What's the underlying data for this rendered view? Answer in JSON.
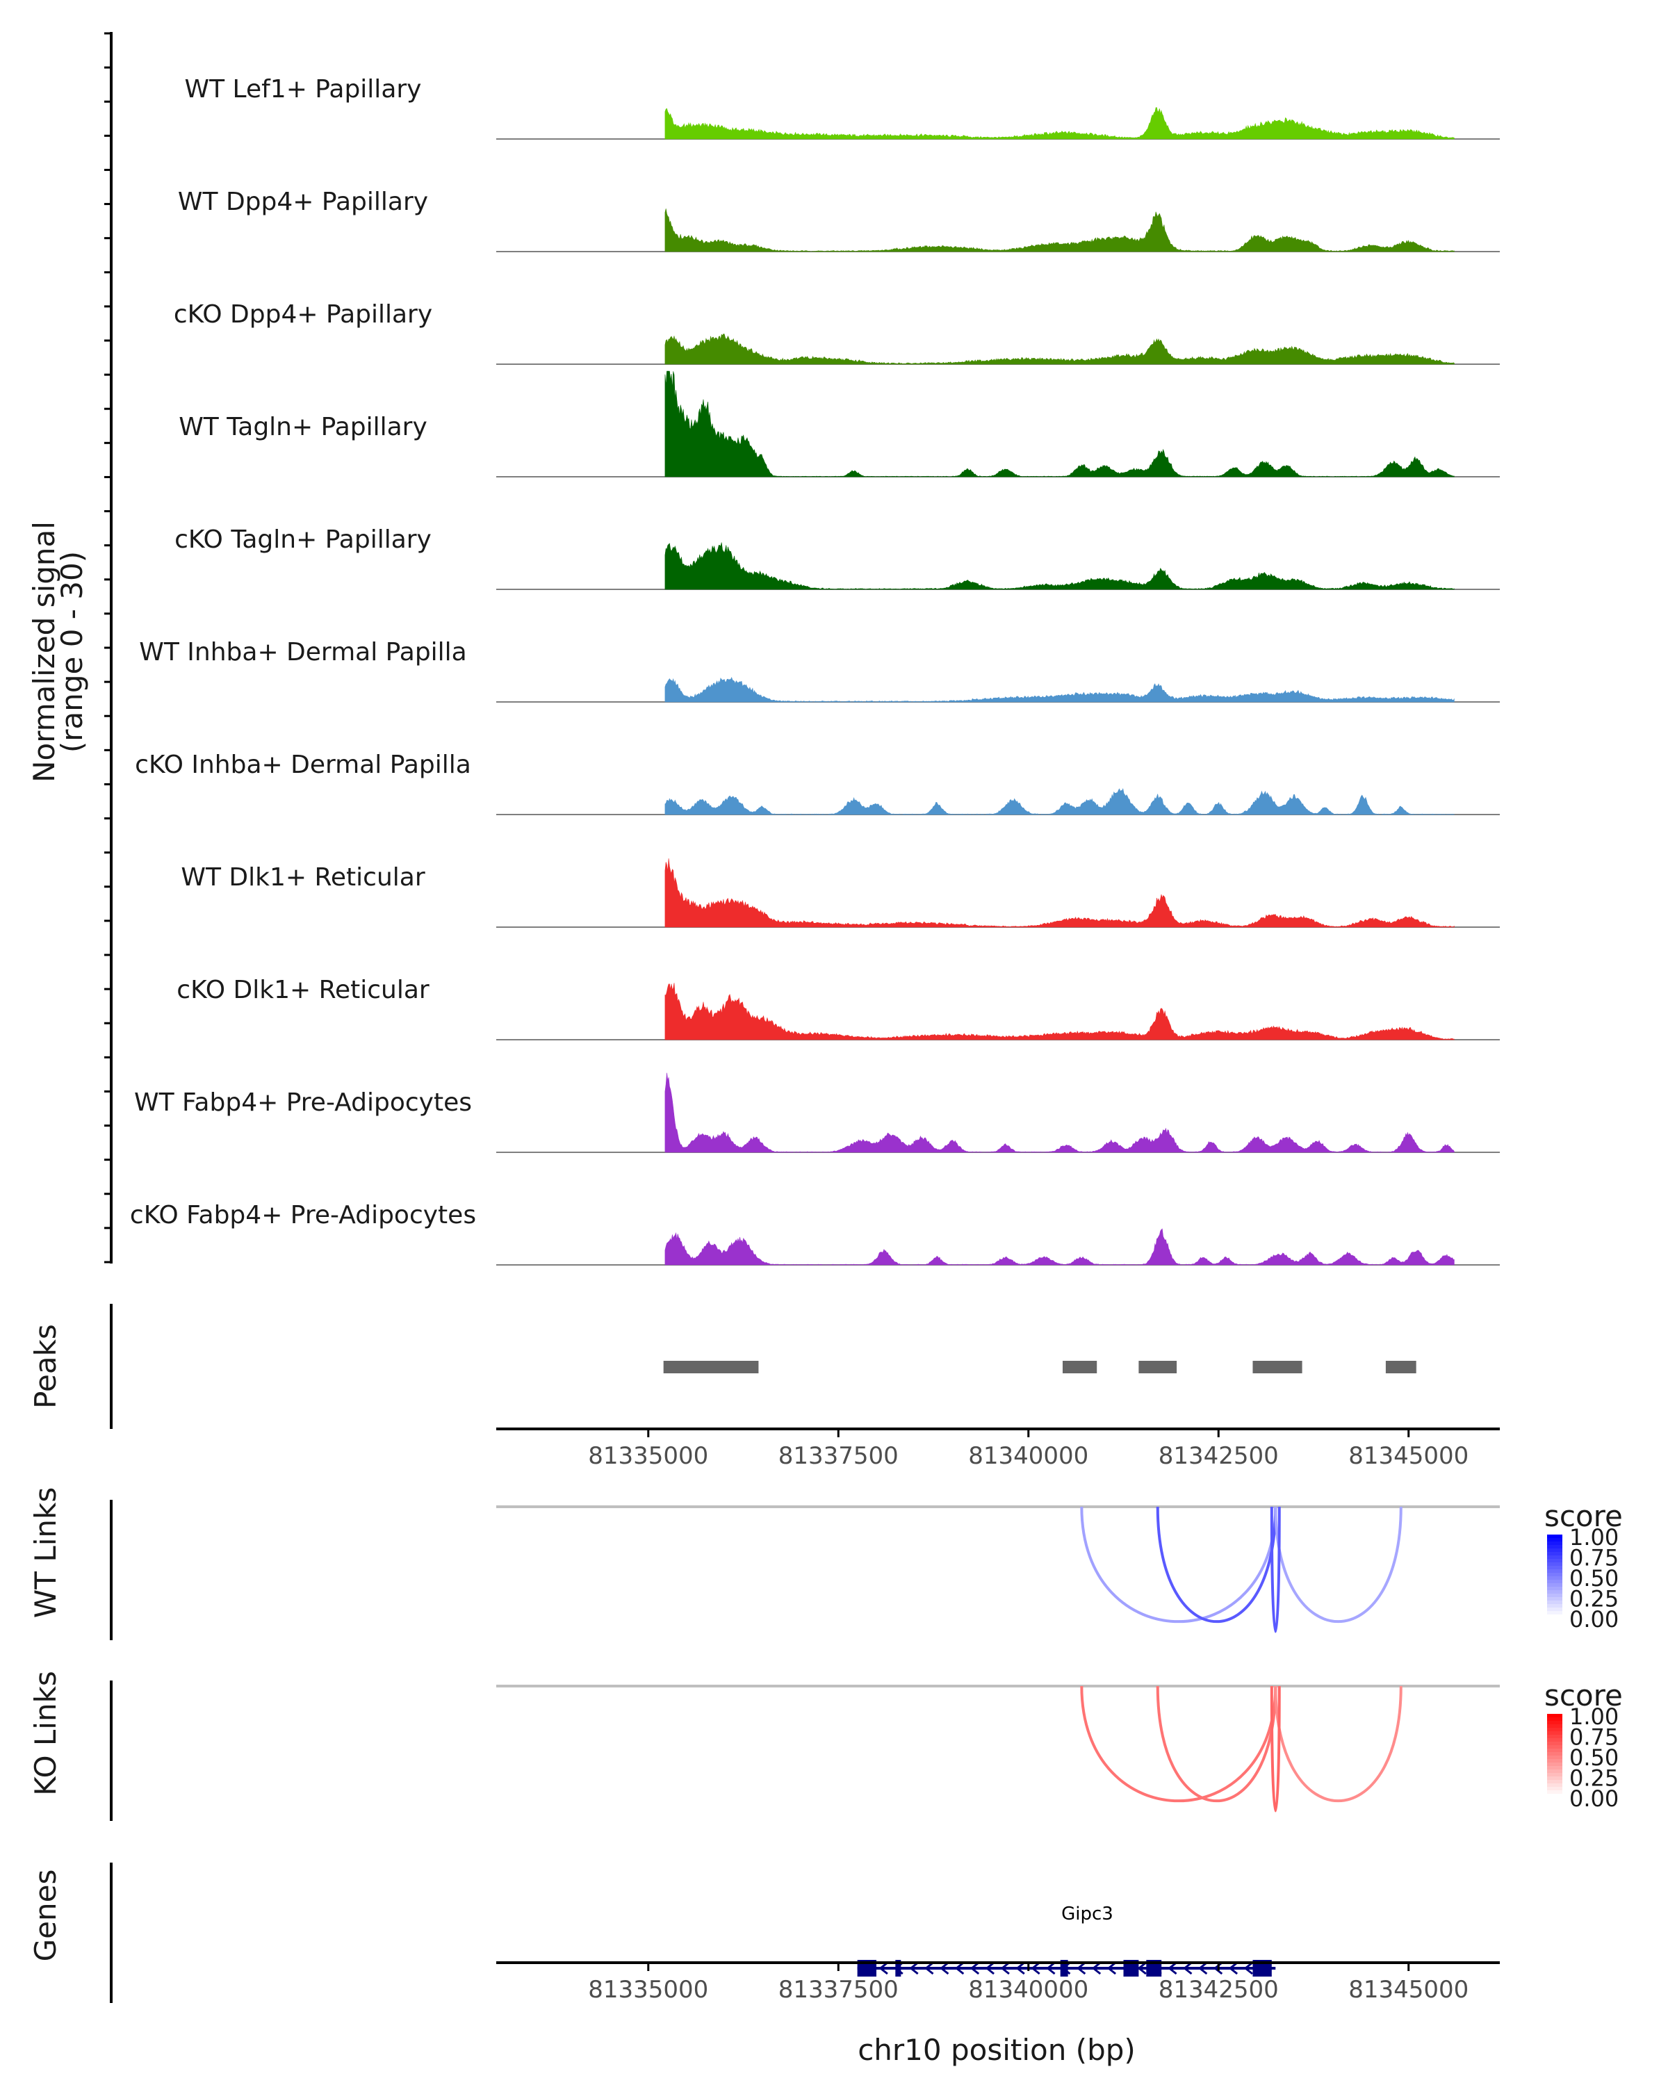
{
  "chart_data": {
    "type": "coverage",
    "x_axis": {
      "label": "chr10 position (bp)",
      "range": [
        81333000,
        81346200
      ],
      "ticks": [
        81335000,
        81337500,
        81340000,
        81342500,
        81345000
      ],
      "tick_labels": [
        "81335000",
        "81337500",
        "81340000",
        "81342500",
        "81345000"
      ]
    },
    "coverage": {
      "ylabel_line1": "Normalized signal",
      "ylabel_line2": "(range 0 - 30)",
      "y_range": [
        0,
        30
      ],
      "tracks": [
        {
          "name": "WT Lef1+ Papillary",
          "color": "#66CD00",
          "peaks": [
            [
              81335200,
              8,
              0.09
            ],
            [
              81335500,
              3,
              0.15
            ],
            [
              81335800,
              2.5,
              0.15
            ],
            [
              81336200,
              2,
              0.3
            ],
            [
              81337000,
              1,
              0.5
            ],
            [
              81338500,
              0.8,
              0.6
            ],
            [
              81340500,
              1.5,
              0.4
            ],
            [
              81341700,
              8,
              0.09
            ],
            [
              81342300,
              1.5,
              0.3
            ],
            [
              81343000,
              3,
              0.2
            ],
            [
              81343400,
              4,
              0.2
            ],
            [
              81343800,
              2,
              0.25
            ],
            [
              81344500,
              1.5,
              0.2
            ],
            [
              81345000,
              2,
              0.25
            ]
          ],
          "noise": 0.6
        },
        {
          "name": "WT Dpp4+ Papillary",
          "color": "#458B00",
          "peaks": [
            [
              81335200,
              11,
              0.09
            ],
            [
              81335500,
              4,
              0.15
            ],
            [
              81335900,
              2.5,
              0.15
            ],
            [
              81336300,
              1.5,
              0.2
            ],
            [
              81338800,
              1.2,
              0.4
            ],
            [
              81340300,
              1.8,
              0.3
            ],
            [
              81341000,
              2.5,
              0.3
            ],
            [
              81341400,
              2,
              0.3
            ],
            [
              81341700,
              9,
              0.09
            ],
            [
              81343000,
              4,
              0.12
            ],
            [
              81343400,
              4,
              0.15
            ],
            [
              81343700,
              2,
              0.1
            ],
            [
              81344500,
              1.5,
              0.15
            ],
            [
              81345000,
              2.5,
              0.15
            ]
          ],
          "noise": 0.5
        },
        {
          "name": "cKO Dpp4+ Papillary",
          "color": "#458B00",
          "peaks": [
            [
              81335300,
              7,
              0.12
            ],
            [
              81335700,
              5,
              0.15
            ],
            [
              81336000,
              6,
              0.15
            ],
            [
              81336300,
              3,
              0.2
            ],
            [
              81337200,
              1.5,
              0.4
            ],
            [
              81340000,
              1.2,
              0.6
            ],
            [
              81341300,
              2,
              0.3
            ],
            [
              81341700,
              5.5,
              0.1
            ],
            [
              81342300,
              1.5,
              0.3
            ],
            [
              81343000,
              3.5,
              0.2
            ],
            [
              81343500,
              4,
              0.2
            ],
            [
              81344400,
              2,
              0.3
            ],
            [
              81345000,
              2,
              0.25
            ]
          ],
          "noise": 0.6
        },
        {
          "name": "WT Tagln+ Papillary",
          "color": "#006400",
          "peaks": [
            [
              81335250,
              26,
              0.1
            ],
            [
              81335500,
              15,
              0.15
            ],
            [
              81335750,
              14,
              0.08
            ],
            [
              81336000,
              11,
              0.15
            ],
            [
              81336300,
              9,
              0.1
            ],
            [
              81336500,
              4,
              0.06
            ],
            [
              81337700,
              1.5,
              0.06
            ],
            [
              81339200,
              2,
              0.06
            ],
            [
              81339700,
              2,
              0.08
            ],
            [
              81340700,
              3,
              0.08
            ],
            [
              81341000,
              3,
              0.1
            ],
            [
              81341400,
              2,
              0.12
            ],
            [
              81341750,
              7,
              0.1
            ],
            [
              81342700,
              2.5,
              0.08
            ],
            [
              81343100,
              4,
              0.1
            ],
            [
              81343400,
              3,
              0.08
            ],
            [
              81344800,
              4,
              0.1
            ],
            [
              81345100,
              5,
              0.08
            ],
            [
              81345400,
              2,
              0.08
            ]
          ],
          "noise": 0.3
        },
        {
          "name": "cKO Tagln+ Papillary",
          "color": "#006400",
          "peaks": [
            [
              81335300,
              12,
              0.12
            ],
            [
              81335700,
              8,
              0.15
            ],
            [
              81336000,
              10,
              0.15
            ],
            [
              81336400,
              4,
              0.2
            ],
            [
              81336800,
              1.5,
              0.2
            ],
            [
              81339200,
              2,
              0.15
            ],
            [
              81340200,
              1,
              0.2
            ],
            [
              81340800,
              2,
              0.2
            ],
            [
              81341200,
              2,
              0.25
            ],
            [
              81341750,
              5,
              0.1
            ],
            [
              81342700,
              2.5,
              0.15
            ],
            [
              81343100,
              4,
              0.15
            ],
            [
              81343500,
              2.5,
              0.15
            ],
            [
              81344400,
              1.5,
              0.15
            ],
            [
              81345000,
              1.5,
              0.2
            ]
          ],
          "noise": 0.5
        },
        {
          "name": "WT Inhba+ Dermal Papilla",
          "color": "#4F94CD",
          "peaks": [
            [
              81335300,
              6,
              0.1
            ],
            [
              81335900,
              4,
              0.2
            ],
            [
              81336200,
              4,
              0.2
            ],
            [
              81339800,
              1,
              0.4
            ],
            [
              81340600,
              1.5,
              0.3
            ],
            [
              81341200,
              1.8,
              0.3
            ],
            [
              81341700,
              4,
              0.08
            ],
            [
              81342300,
              1.5,
              0.3
            ],
            [
              81343000,
              2,
              0.2
            ],
            [
              81343500,
              2.5,
              0.2
            ],
            [
              81344400,
              1,
              0.3
            ],
            [
              81345200,
              1,
              0.3
            ]
          ],
          "noise": 0.5
        },
        {
          "name": "cKO Inhba+ Dermal Papilla",
          "color": "#4F94CD",
          "peaks": [
            [
              81335300,
              4,
              0.1
            ],
            [
              81335700,
              4,
              0.1
            ],
            [
              81336100,
              5,
              0.12
            ],
            [
              81336500,
              2,
              0.06
            ],
            [
              81337700,
              4,
              0.1
            ],
            [
              81338000,
              3,
              0.08
            ],
            [
              81338800,
              3,
              0.06
            ],
            [
              81339800,
              4,
              0.1
            ],
            [
              81340500,
              3,
              0.08
            ],
            [
              81340800,
              4,
              0.1
            ],
            [
              81341200,
              7,
              0.12
            ],
            [
              81341700,
              5,
              0.08
            ],
            [
              81342100,
              3,
              0.06
            ],
            [
              81342500,
              3,
              0.06
            ],
            [
              81343100,
              6,
              0.12
            ],
            [
              81343500,
              5,
              0.1
            ],
            [
              81343900,
              2,
              0.05
            ],
            [
              81344400,
              5,
              0.06
            ],
            [
              81344900,
              2,
              0.05
            ]
          ],
          "noise": 0.3
        },
        {
          "name": "WT Dlk1+ Reticular",
          "color": "#EE2C2C",
          "peaks": [
            [
              81335250,
              17,
              0.1
            ],
            [
              81335500,
              6,
              0.12
            ],
            [
              81335800,
              5,
              0.15
            ],
            [
              81336100,
              6,
              0.15
            ],
            [
              81336400,
              4,
              0.15
            ],
            [
              81337000,
              1.2,
              0.4
            ],
            [
              81338500,
              1,
              0.5
            ],
            [
              81340600,
              2,
              0.25
            ],
            [
              81341200,
              1.5,
              0.3
            ],
            [
              81341750,
              8,
              0.1
            ],
            [
              81342300,
              1.5,
              0.2
            ],
            [
              81343200,
              3,
              0.15
            ],
            [
              81343600,
              2.5,
              0.15
            ],
            [
              81344500,
              2,
              0.15
            ],
            [
              81345000,
              2.5,
              0.15
            ]
          ],
          "noise": 0.5
        },
        {
          "name": "cKO Dlk1+ Reticular",
          "color": "#EE2C2C",
          "peaks": [
            [
              81335300,
              15,
              0.12
            ],
            [
              81335700,
              9,
              0.12
            ],
            [
              81336100,
              11,
              0.15
            ],
            [
              81336500,
              5,
              0.2
            ],
            [
              81337200,
              1.5,
              0.4
            ],
            [
              81339000,
              1.2,
              0.5
            ],
            [
              81340500,
              1.5,
              0.4
            ],
            [
              81341200,
              1.5,
              0.3
            ],
            [
              81341750,
              8,
              0.09
            ],
            [
              81342500,
              2,
              0.3
            ],
            [
              81343200,
              3,
              0.2
            ],
            [
              81343700,
              2,
              0.2
            ],
            [
              81344600,
              2,
              0.2
            ],
            [
              81345000,
              2.5,
              0.2
            ]
          ],
          "noise": 0.5
        },
        {
          "name": "WT Fabp4+ Pre-Adipocytes",
          "color": "#9A32CD",
          "peaks": [
            [
              81335250,
              20,
              0.08
            ],
            [
              81335700,
              5,
              0.12
            ],
            [
              81336000,
              5,
              0.1
            ],
            [
              81336400,
              4,
              0.1
            ],
            [
              81337800,
              3,
              0.15
            ],
            [
              81338200,
              5,
              0.12
            ],
            [
              81338600,
              4,
              0.1
            ],
            [
              81339000,
              3,
              0.08
            ],
            [
              81339700,
              2,
              0.06
            ],
            [
              81340500,
              2,
              0.08
            ],
            [
              81341100,
              3,
              0.1
            ],
            [
              81341500,
              4,
              0.1
            ],
            [
              81341800,
              6,
              0.1
            ],
            [
              81342400,
              3,
              0.06
            ],
            [
              81343000,
              4,
              0.1
            ],
            [
              81343400,
              4,
              0.12
            ],
            [
              81343800,
              3,
              0.08
            ],
            [
              81344300,
              2,
              0.08
            ],
            [
              81345000,
              5,
              0.08
            ],
            [
              81345500,
              2,
              0.05
            ]
          ],
          "noise": 0.3
        },
        {
          "name": "cKO Fabp4+ Pre-Adipocytes",
          "color": "#9A32CD",
          "peaks": [
            [
              81335350,
              8,
              0.12
            ],
            [
              81335800,
              6,
              0.1
            ],
            [
              81336200,
              7,
              0.15
            ],
            [
              81338100,
              4,
              0.08
            ],
            [
              81338800,
              2,
              0.06
            ],
            [
              81339700,
              2,
              0.08
            ],
            [
              81340200,
              2,
              0.1
            ],
            [
              81340700,
              2,
              0.08
            ],
            [
              81341750,
              9,
              0.08
            ],
            [
              81342300,
              2,
              0.06
            ],
            [
              81342600,
              2,
              0.06
            ],
            [
              81343300,
              3,
              0.12
            ],
            [
              81343700,
              3,
              0.08
            ],
            [
              81344200,
              3,
              0.1
            ],
            [
              81344800,
              2,
              0.06
            ],
            [
              81345100,
              4,
              0.08
            ],
            [
              81345500,
              2.5,
              0.08
            ]
          ],
          "noise": 0.3
        }
      ]
    },
    "peaks": {
      "label": "Peaks",
      "color": "#666666",
      "intervals": [
        [
          81335200,
          81336450
        ],
        [
          81340450,
          81340900
        ],
        [
          81341450,
          81341950
        ],
        [
          81342950,
          81343600
        ],
        [
          81344700,
          81345100
        ]
      ]
    },
    "links": [
      {
        "label": "WT Links",
        "legend_title": "score",
        "color_low": "#FFFFFF",
        "color_high": "#0000FF",
        "legend_ticks": [
          "1.00",
          "0.75",
          "0.50",
          "0.25",
          "0.00"
        ],
        "arcs": [
          [
            81340700,
            81343250,
            0.22
          ],
          [
            81341700,
            81343250,
            0.5
          ],
          [
            81343250,
            81344900,
            0.2
          ],
          [
            81343200,
            81343300,
            0.5
          ]
        ]
      },
      {
        "label": "KO Links",
        "legend_title": "score",
        "color_low": "#FFFFFF",
        "color_high": "#FF0000",
        "legend_ticks": [
          "1.00",
          "0.75",
          "0.50",
          "0.25",
          "0.00"
        ],
        "arcs": [
          [
            81340700,
            81343250,
            0.4
          ],
          [
            81341700,
            81343250,
            0.4
          ],
          [
            81343250,
            81344900,
            0.3
          ],
          [
            81343200,
            81343300,
            0.45
          ]
        ]
      }
    ],
    "genes": {
      "label": "Genes",
      "color": "#000080",
      "gene_name": "Gipc3",
      "strand": "-",
      "span": [
        81337750,
        81343250
      ],
      "exons": [
        [
          81337750,
          81338000
        ],
        [
          81338250,
          81338320
        ],
        [
          81340420,
          81340520
        ],
        [
          81341250,
          81341450
        ],
        [
          81341550,
          81341750
        ],
        [
          81342950,
          81343200
        ]
      ]
    }
  }
}
